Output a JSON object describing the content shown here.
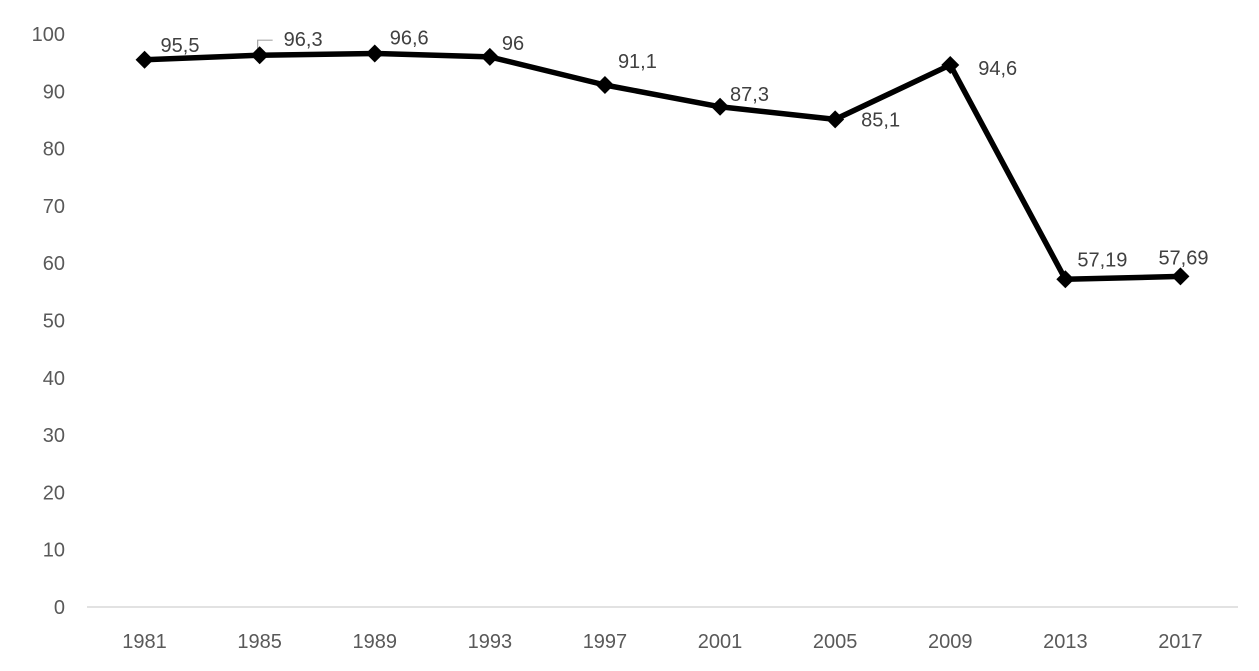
{
  "chart_data": {
    "type": "line",
    "title": "",
    "xlabel": "",
    "ylabel": "",
    "categories": [
      "1981",
      "1985",
      "1989",
      "1993",
      "1997",
      "2001",
      "2005",
      "2009",
      "2013",
      "2017"
    ],
    "series": [
      {
        "name": "series-1",
        "values": [
          95.5,
          96.3,
          96.6,
          96,
          91.1,
          87.3,
          85.1,
          94.6,
          57.19,
          57.69
        ],
        "point_labels": [
          "95,5",
          "96,3",
          "96,6",
          "96",
          "91,1",
          "87,3",
          "85,1",
          "94,6",
          "57,19",
          "57,69"
        ]
      }
    ],
    "yticks": [
      "0",
      "10",
      "20",
      "30",
      "40",
      "50",
      "60",
      "70",
      "80",
      "90",
      "100"
    ],
    "ylim": [
      0,
      100
    ],
    "grid": false,
    "legend": false,
    "marker_shape": "diamond",
    "label_leader_on_category": "1985",
    "colors": {
      "line": "#000000",
      "marker": "#000000",
      "axis_line": "#d9d9d9",
      "tick_label": "#595959",
      "data_label": "#404040",
      "leader_line": "#a6a6a6",
      "background": "#ffffff"
    }
  }
}
